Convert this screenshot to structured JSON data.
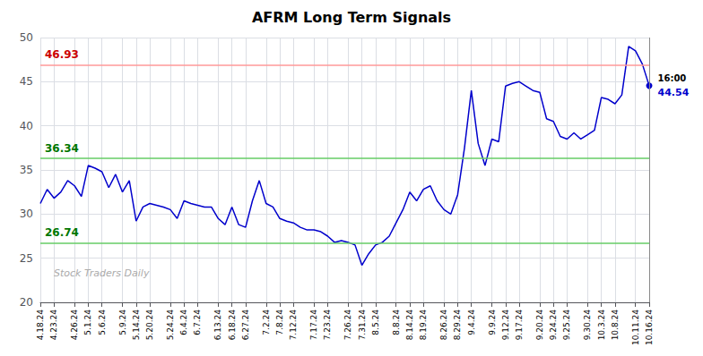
{
  "chart_data": {
    "type": "line",
    "title": "AFRM Long Term Signals",
    "categories": [
      "4.18.24",
      null,
      "4.23.24",
      null,
      null,
      "4.26.24",
      null,
      "5.1.24",
      null,
      "5.6.24",
      null,
      null,
      "5.9.24",
      null,
      "5.14.24",
      null,
      "5.20.24",
      null,
      null,
      "5.24.24",
      null,
      "6.4.24",
      null,
      "6.7.24",
      null,
      null,
      "6.13.24",
      null,
      "6.18.24",
      null,
      "6.27.24",
      null,
      null,
      "7.2.24",
      null,
      "7.8.24",
      null,
      "7.12.24",
      null,
      null,
      "7.17.24",
      null,
      "7.23.24",
      null,
      null,
      "7.26.24",
      null,
      "7.31.24",
      null,
      "8.5.24",
      null,
      null,
      "8.8.24",
      null,
      "8.14.24",
      null,
      "8.19.24",
      null,
      null,
      "8.26.24",
      null,
      "8.29.24",
      null,
      "9.4.24",
      null,
      null,
      "9.9.24",
      null,
      "9.12.24",
      null,
      "9.17.24",
      null,
      null,
      "9.20.24",
      null,
      "9.24.24",
      null,
      "9.25.24",
      null,
      null,
      "9.30.24",
      null,
      "10.3.24",
      null,
      "10.8.24",
      null,
      null,
      "10.11.24",
      null,
      "10.16.24"
    ],
    "values": [
      31.2,
      32.8,
      31.8,
      32.5,
      33.8,
      33.2,
      32.0,
      35.5,
      35.2,
      34.8,
      33.0,
      34.5,
      32.5,
      33.8,
      29.2,
      30.8,
      31.2,
      31.0,
      30.8,
      30.5,
      29.5,
      31.5,
      31.2,
      31.0,
      30.8,
      30.8,
      29.5,
      28.8,
      30.8,
      28.8,
      28.5,
      31.5,
      33.8,
      31.2,
      30.8,
      29.5,
      29.2,
      29.0,
      28.5,
      28.2,
      28.2,
      28.0,
      27.5,
      26.8,
      27.0,
      26.8,
      26.5,
      24.2,
      25.5,
      26.5,
      26.8,
      27.5,
      29.0,
      30.5,
      32.5,
      31.5,
      32.8,
      33.2,
      31.5,
      30.5,
      30.0,
      32.2,
      37.5,
      44.0,
      38.0,
      35.5,
      38.5,
      38.2,
      44.5,
      44.8,
      45.0,
      44.5,
      44.0,
      43.8,
      40.8,
      40.5,
      38.8,
      38.5,
      39.2,
      38.5,
      39.0,
      39.5,
      43.2,
      43.0,
      42.5,
      43.5,
      49.0,
      48.5,
      47.0,
      44.54
    ],
    "color": "#0000cc",
    "ylim": [
      20,
      50
    ],
    "yticks": [
      20,
      25,
      30,
      35,
      40,
      45,
      50
    ],
    "grid": true,
    "hlines": [
      {
        "value": 46.93,
        "color": "#ff9999",
        "label_color": "#cc0000"
      },
      {
        "value": 36.34,
        "color": "#66cc66",
        "label_color": "#007700"
      },
      {
        "value": 26.74,
        "color": "#66cc66",
        "label_color": "#007700"
      }
    ],
    "time_label": "16:00",
    "last_price": 44.54,
    "watermark": "Stock Traders Daily"
  }
}
